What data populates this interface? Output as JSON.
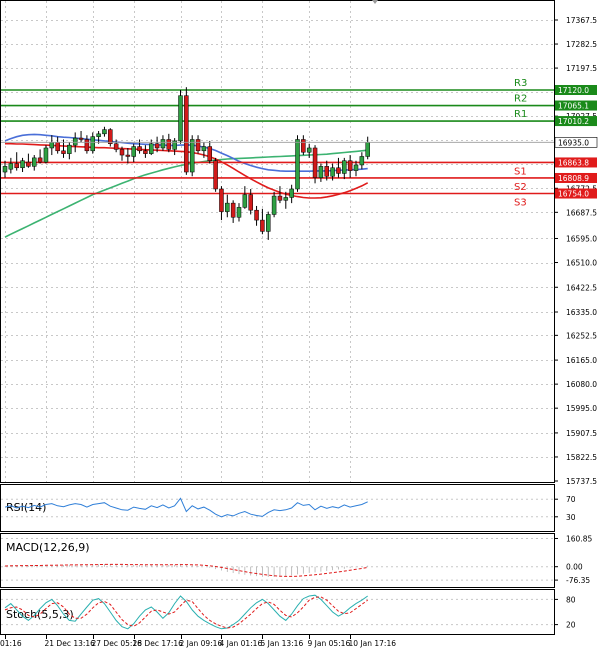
{
  "chart_data": {
    "type": "candlestick",
    "main": {
      "ylim": [
        15737.5,
        17410
      ],
      "ticks": [
        "17367.5",
        "17282.5",
        "17197.5",
        "17112.5",
        "17027.5",
        "16942.5",
        "16857.5",
        "16772.5",
        "16687.5",
        "16595.0",
        "16510.0",
        "16422.5",
        "16335.0",
        "16252.5",
        "16165.0",
        "16080.0",
        "15995.0",
        "15907.5",
        "15822.5",
        "15737.5"
      ],
      "tick_values": [
        17367.5,
        17282.5,
        17197.5,
        17112.5,
        17027.5,
        16942.5,
        16857.5,
        16772.5,
        16687.5,
        16595.0,
        16510.0,
        16422.5,
        16335.0,
        16252.5,
        16165.0,
        16080.0,
        15995.0,
        15907.5,
        15822.5,
        15737.5
      ],
      "levels": [
        {
          "id": "R3",
          "label": "R3",
          "price": 17120.0,
          "price_label": "17120.0",
          "color": "#1a8a1a"
        },
        {
          "id": "R2",
          "label": "R2",
          "price": 17065.1,
          "price_label": "17065.1",
          "color": "#1a8a1a"
        },
        {
          "id": "R1",
          "label": "R1",
          "price": 17010.2,
          "price_label": "17010.2",
          "color": "#1a8a1a"
        },
        {
          "id": "S1",
          "label": "S1",
          "price": 16863.8,
          "price_label": "16863.8",
          "color": "#e01b1b"
        },
        {
          "id": "S2",
          "label": "S2",
          "price": 16808.9,
          "price_label": "16808.9",
          "color": "#e01b1b"
        },
        {
          "id": "S3",
          "label": "S3",
          "price": 16754.0,
          "price_label": "16754.0",
          "color": "#e01b1b"
        }
      ],
      "current_price": 16935.0,
      "current_price_label": "16935.0",
      "candles": [
        {
          "o": 16830,
          "h": 16870,
          "l": 16810,
          "c": 16850
        },
        {
          "o": 16840,
          "h": 16880,
          "l": 16825,
          "c": 16860
        },
        {
          "o": 16860,
          "h": 16900,
          "l": 16835,
          "c": 16845
        },
        {
          "o": 16845,
          "h": 16880,
          "l": 16830,
          "c": 16870
        },
        {
          "o": 16865,
          "h": 16895,
          "l": 16845,
          "c": 16850
        },
        {
          "o": 16850,
          "h": 16890,
          "l": 16835,
          "c": 16880
        },
        {
          "o": 16880,
          "h": 16910,
          "l": 16860,
          "c": 16865
        },
        {
          "o": 16865,
          "h": 16925,
          "l": 16860,
          "c": 16915
        },
        {
          "o": 16915,
          "h": 16960,
          "l": 16890,
          "c": 16935
        },
        {
          "o": 16935,
          "h": 16955,
          "l": 16895,
          "c": 16905
        },
        {
          "o": 16905,
          "h": 16945,
          "l": 16880,
          "c": 16895
        },
        {
          "o": 16895,
          "h": 16935,
          "l": 16875,
          "c": 16925
        },
        {
          "o": 16925,
          "h": 16970,
          "l": 16900,
          "c": 16950
        },
        {
          "o": 16950,
          "h": 16975,
          "l": 16935,
          "c": 16945
        },
        {
          "o": 16945,
          "h": 16960,
          "l": 16895,
          "c": 16905
        },
        {
          "o": 16905,
          "h": 16970,
          "l": 16895,
          "c": 16955
        },
        {
          "o": 16955,
          "h": 16975,
          "l": 16930,
          "c": 16965
        },
        {
          "o": 16965,
          "h": 16990,
          "l": 16955,
          "c": 16980
        },
        {
          "o": 16980,
          "h": 16985,
          "l": 16920,
          "c": 16930
        },
        {
          "o": 16930,
          "h": 16945,
          "l": 16900,
          "c": 16910
        },
        {
          "o": 16910,
          "h": 16920,
          "l": 16870,
          "c": 16890
        },
        {
          "o": 16890,
          "h": 16915,
          "l": 16860,
          "c": 16885
        },
        {
          "o": 16885,
          "h": 16930,
          "l": 16865,
          "c": 16920
        },
        {
          "o": 16920,
          "h": 16945,
          "l": 16895,
          "c": 16905
        },
        {
          "o": 16905,
          "h": 16925,
          "l": 16880,
          "c": 16895
        },
        {
          "o": 16895,
          "h": 16945,
          "l": 16890,
          "c": 16930
        },
        {
          "o": 16930,
          "h": 16955,
          "l": 16900,
          "c": 16915
        },
        {
          "o": 16915,
          "h": 16960,
          "l": 16905,
          "c": 16945
        },
        {
          "o": 16945,
          "h": 16965,
          "l": 16900,
          "c": 16910
        },
        {
          "o": 16910,
          "h": 16950,
          "l": 16890,
          "c": 16940
        },
        {
          "o": 16940,
          "h": 17120,
          "l": 16930,
          "c": 17100
        },
        {
          "o": 17100,
          "h": 17130,
          "l": 16820,
          "c": 16830
        },
        {
          "o": 16830,
          "h": 16960,
          "l": 16815,
          "c": 16945
        },
        {
          "o": 16945,
          "h": 16960,
          "l": 16895,
          "c": 16905
        },
        {
          "o": 16905,
          "h": 16935,
          "l": 16880,
          "c": 16920
        },
        {
          "o": 16920,
          "h": 16940,
          "l": 16860,
          "c": 16870
        },
        {
          "o": 16870,
          "h": 16880,
          "l": 16760,
          "c": 16770
        },
        {
          "o": 16770,
          "h": 16780,
          "l": 16660,
          "c": 16690
        },
        {
          "o": 16690,
          "h": 16750,
          "l": 16670,
          "c": 16720
        },
        {
          "o": 16720,
          "h": 16730,
          "l": 16650,
          "c": 16670
        },
        {
          "o": 16670,
          "h": 16720,
          "l": 16655,
          "c": 16705
        },
        {
          "o": 16705,
          "h": 16780,
          "l": 16700,
          "c": 16750
        },
        {
          "o": 16750,
          "h": 16770,
          "l": 16680,
          "c": 16695
        },
        {
          "o": 16695,
          "h": 16710,
          "l": 16640,
          "c": 16660
        },
        {
          "o": 16660,
          "h": 16700,
          "l": 16610,
          "c": 16620
        },
        {
          "o": 16620,
          "h": 16690,
          "l": 16590,
          "c": 16680
        },
        {
          "o": 16680,
          "h": 16760,
          "l": 16670,
          "c": 16745
        },
        {
          "o": 16745,
          "h": 16780,
          "l": 16720,
          "c": 16730
        },
        {
          "o": 16730,
          "h": 16760,
          "l": 16700,
          "c": 16740
        },
        {
          "o": 16740,
          "h": 16785,
          "l": 16720,
          "c": 16770
        },
        {
          "o": 16770,
          "h": 16960,
          "l": 16760,
          "c": 16945
        },
        {
          "o": 16945,
          "h": 16960,
          "l": 16890,
          "c": 16900
        },
        {
          "o": 16900,
          "h": 16930,
          "l": 16880,
          "c": 16915
        },
        {
          "o": 16915,
          "h": 16925,
          "l": 16790,
          "c": 16810
        },
        {
          "o": 16810,
          "h": 16860,
          "l": 16795,
          "c": 16850
        },
        {
          "o": 16850,
          "h": 16870,
          "l": 16800,
          "c": 16815
        },
        {
          "o": 16815,
          "h": 16860,
          "l": 16800,
          "c": 16845
        },
        {
          "o": 16845,
          "h": 16880,
          "l": 16810,
          "c": 16825
        },
        {
          "o": 16825,
          "h": 16880,
          "l": 16805,
          "c": 16870
        },
        {
          "o": 16870,
          "h": 16890,
          "l": 16810,
          "c": 16835
        },
        {
          "o": 16835,
          "h": 16870,
          "l": 16815,
          "c": 16855
        },
        {
          "o": 16855,
          "h": 16900,
          "l": 16840,
          "c": 16885
        },
        {
          "o": 16885,
          "h": 16955,
          "l": 16875,
          "c": 16935
        }
      ],
      "ma_blue": [
        16940,
        16948,
        16955,
        16960,
        16962,
        16963,
        16962,
        16960,
        16958,
        16955,
        16953,
        16952,
        16950,
        16948,
        16946,
        16944,
        16942,
        16940,
        16938,
        16936,
        16934,
        16932,
        16930,
        16929,
        16928,
        16927,
        16926,
        16925,
        16924,
        16924,
        16925,
        16926,
        16925,
        16922,
        16918,
        16913,
        16906,
        16897,
        16888,
        16878,
        16868,
        16860,
        16853,
        16847,
        16842,
        16838,
        16836,
        16834,
        16833,
        16833,
        16833,
        16833,
        16833,
        16834,
        16834,
        16834,
        16835,
        16836,
        16837,
        16838,
        16839,
        16840,
        16842
      ],
      "ma_red": [
        16930,
        16930,
        16929,
        16929,
        16928,
        16927,
        16926,
        16925,
        16924,
        16923,
        16922,
        16921,
        16920,
        16919,
        16918,
        16917,
        16916,
        16916,
        16915,
        16914,
        16913,
        16912,
        16911,
        16910,
        16909,
        16908,
        16907,
        16906,
        16905,
        16904,
        16903,
        16902,
        16899,
        16895,
        16890,
        16884,
        16876,
        16866,
        16855,
        16843,
        16830,
        16818,
        16806,
        16795,
        16784,
        16774,
        16766,
        16758,
        16752,
        16747,
        16743,
        16740,
        16738,
        16738,
        16739,
        16742,
        16746,
        16751,
        16757,
        16764,
        16772,
        16781,
        16792
      ],
      "ma_green": [
        16600,
        16610,
        16620,
        16630,
        16640,
        16650,
        16660,
        16670,
        16680,
        16690,
        16700,
        16710,
        16720,
        16730,
        16740,
        16750,
        16758,
        16766,
        16774,
        16782,
        16790,
        16798,
        16806,
        16813,
        16820,
        16826,
        16832,
        16838,
        16843,
        16848,
        16853,
        16857,
        16861,
        16864,
        16867,
        16870,
        16872,
        16874,
        16876,
        16877,
        16878,
        16879,
        16880,
        16881,
        16882,
        16883,
        16884,
        16885,
        16886,
        16887,
        16888,
        16889,
        16890,
        16891,
        16892,
        16893,
        16895,
        16897,
        16899,
        16901,
        16903,
        16905,
        16907
      ]
    },
    "rsi": {
      "label": "RSI(14)",
      "ticks": [
        "70",
        "30"
      ],
      "tick_values": [
        70,
        30
      ],
      "ylim": [
        0,
        100
      ],
      "values": [
        52,
        55,
        50,
        54,
        51,
        56,
        52,
        58,
        60,
        55,
        53,
        57,
        60,
        58,
        52,
        58,
        60,
        62,
        54,
        50,
        46,
        45,
        52,
        49,
        47,
        55,
        51,
        57,
        50,
        55,
        72,
        42,
        55,
        48,
        52,
        45,
        36,
        30,
        35,
        32,
        38,
        42,
        36,
        33,
        31,
        40,
        46,
        44,
        46,
        50,
        62,
        56,
        58,
        46,
        54,
        49,
        53,
        50,
        57,
        52,
        55,
        58,
        64
      ]
    },
    "macd": {
      "label": "MACD(12,26,9)",
      "ticks": [
        "160.85",
        "0.00",
        "-76.35"
      ],
      "tick_values": [
        160.85,
        0,
        -76.35
      ],
      "ylim": [
        -110,
        175
      ],
      "histogram": [
        5,
        6,
        6,
        7,
        7,
        8,
        8,
        9,
        10,
        10,
        10,
        11,
        12,
        12,
        12,
        13,
        14,
        15,
        15,
        14,
        12,
        11,
        11,
        10,
        10,
        10,
        10,
        10,
        10,
        10,
        16,
        12,
        8,
        4,
        0,
        -6,
        -14,
        -22,
        -30,
        -36,
        -42,
        -46,
        -50,
        -54,
        -57,
        -58,
        -58,
        -56,
        -54,
        -50,
        -44,
        -40,
        -35,
        -32,
        -28,
        -24,
        -20,
        -16,
        -12,
        -8,
        -4,
        0,
        6
      ],
      "signal": [
        4,
        5,
        5,
        6,
        6,
        7,
        7,
        8,
        8,
        9,
        9,
        10,
        10,
        11,
        11,
        12,
        12,
        13,
        13,
        13,
        13,
        12,
        12,
        12,
        11,
        11,
        11,
        11,
        11,
        11,
        12,
        12,
        11,
        10,
        8,
        5,
        1,
        -4,
        -10,
        -16,
        -22,
        -28,
        -34,
        -39,
        -44,
        -48,
        -52,
        -54,
        -55,
        -55,
        -54,
        -52,
        -49,
        -46,
        -42,
        -38,
        -34,
        -30,
        -25,
        -20,
        -15,
        -10,
        -4
      ]
    },
    "stoch": {
      "label": "Stoch(5,5,3)",
      "ticks": [
        "80",
        "20"
      ],
      "tick_values": [
        80,
        20
      ],
      "ylim": [
        0,
        100
      ],
      "k": [
        60,
        70,
        55,
        40,
        30,
        42,
        58,
        72,
        80,
        65,
        45,
        30,
        28,
        45,
        62,
        78,
        82,
        70,
        50,
        30,
        15,
        10,
        22,
        40,
        55,
        62,
        50,
        35,
        48,
        70,
        88,
        75,
        55,
        40,
        30,
        22,
        15,
        10,
        12,
        20,
        30,
        45,
        60,
        72,
        80,
        70,
        55,
        40,
        30,
        45,
        65,
        82,
        88,
        90,
        80,
        65,
        50,
        40,
        48,
        60,
        70,
        78,
        88
      ],
      "d": [
        55,
        60,
        62,
        55,
        42,
        38,
        45,
        58,
        70,
        72,
        62,
        45,
        35,
        35,
        45,
        60,
        72,
        75,
        68,
        50,
        32,
        20,
        16,
        24,
        38,
        52,
        55,
        50,
        45,
        50,
        65,
        78,
        75,
        58,
        42,
        30,
        22,
        16,
        12,
        14,
        22,
        33,
        45,
        58,
        70,
        74,
        68,
        54,
        42,
        38,
        48,
        62,
        78,
        85,
        86,
        78,
        65,
        52,
        46,
        48,
        58,
        68,
        78
      ]
    },
    "x_ticks": [
      "01:16",
      "21 Dec 13:16",
      "27 Dec 05:16",
      "28 Dec 17:16",
      "2 Jan 09:16",
      "4 Jan 01:16",
      "5 Jan 13:16",
      "9 Jan 05:16",
      "10 Jan 17:16"
    ],
    "x_tick_index": [
      0,
      7,
      15,
      22,
      30,
      37,
      44,
      52,
      59
    ]
  }
}
